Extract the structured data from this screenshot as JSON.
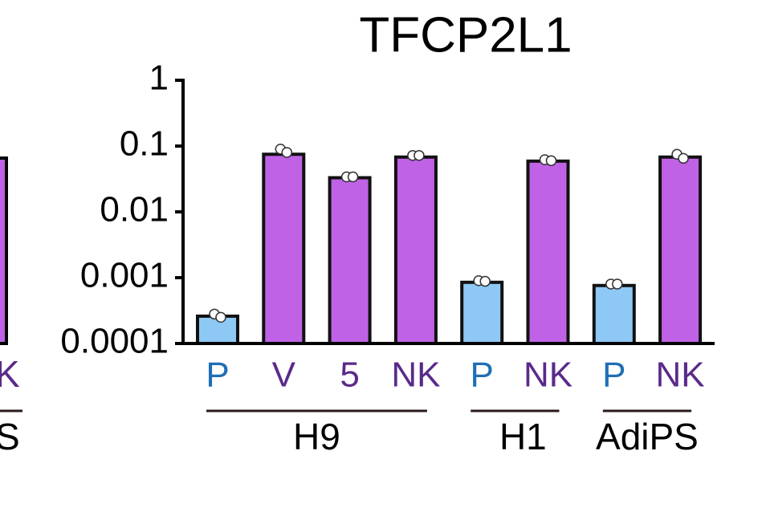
{
  "chart_data": {
    "type": "bar",
    "title": "TFCP2L1",
    "categories": [
      "P",
      "V",
      "5",
      "NK",
      "P",
      "NK",
      "P",
      "NK"
    ],
    "values": [
      0.00026,
      0.075,
      0.033,
      0.068,
      0.00085,
      0.059,
      0.00076,
      0.068
    ],
    "points": [
      [
        0.00028,
        0.00025
      ],
      [
        0.09,
        0.08
      ],
      [
        0.034,
        0.034
      ],
      [
        0.072,
        0.072
      ],
      [
        0.0009,
        0.00088
      ],
      [
        0.062,
        0.06
      ],
      [
        0.0008,
        0.0008
      ],
      [
        0.075,
        0.065
      ]
    ],
    "colors": [
      "#8ec8f5",
      "#c062e6",
      "#c062e6",
      "#c062e6",
      "#8ec8f5",
      "#c062e6",
      "#8ec8f5",
      "#c062e6"
    ],
    "label_colors": [
      "#1f6fb5",
      "#5a2a8a",
      "#5a2a8a",
      "#5a2a8a",
      "#1f6fb5",
      "#5a2a8a",
      "#1f6fb5",
      "#5a2a8a"
    ],
    "groups": [
      {
        "label": "H9",
        "size": 4
      },
      {
        "label": "H1",
        "size": 2
      },
      {
        "label": "AdiPS",
        "size": 2
      }
    ],
    "ylim": [
      0.0001,
      1
    ],
    "yticks": [
      0.0001,
      0.001,
      0.01,
      0.1,
      1
    ],
    "log_scale": true,
    "fragment_labels": [
      "K",
      "S"
    ]
  }
}
